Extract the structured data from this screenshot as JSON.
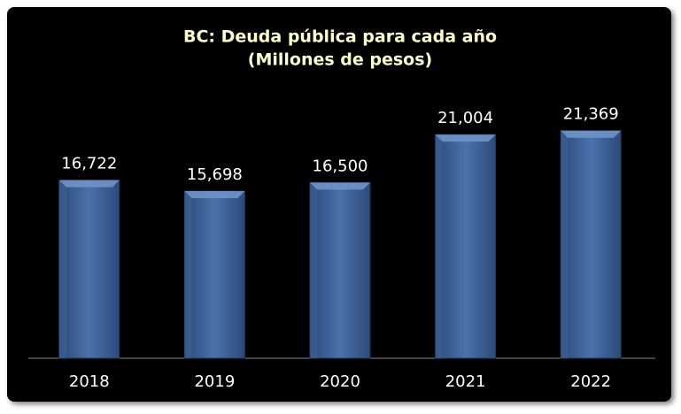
{
  "chart_data": {
    "type": "bar",
    "title": "BC: Deuda pública para cada año",
    "subtitle": "(Millones de pesos)",
    "categories": [
      "2018",
      "2019",
      "2020",
      "2021",
      "2022"
    ],
    "values": [
      16722,
      15698,
      16500,
      21004,
      21369
    ],
    "value_labels": [
      "16,722",
      "15,698",
      "16,500",
      "21,004",
      "21,369"
    ],
    "color": "#3d6399",
    "ylim": [
      0,
      25000
    ]
  }
}
